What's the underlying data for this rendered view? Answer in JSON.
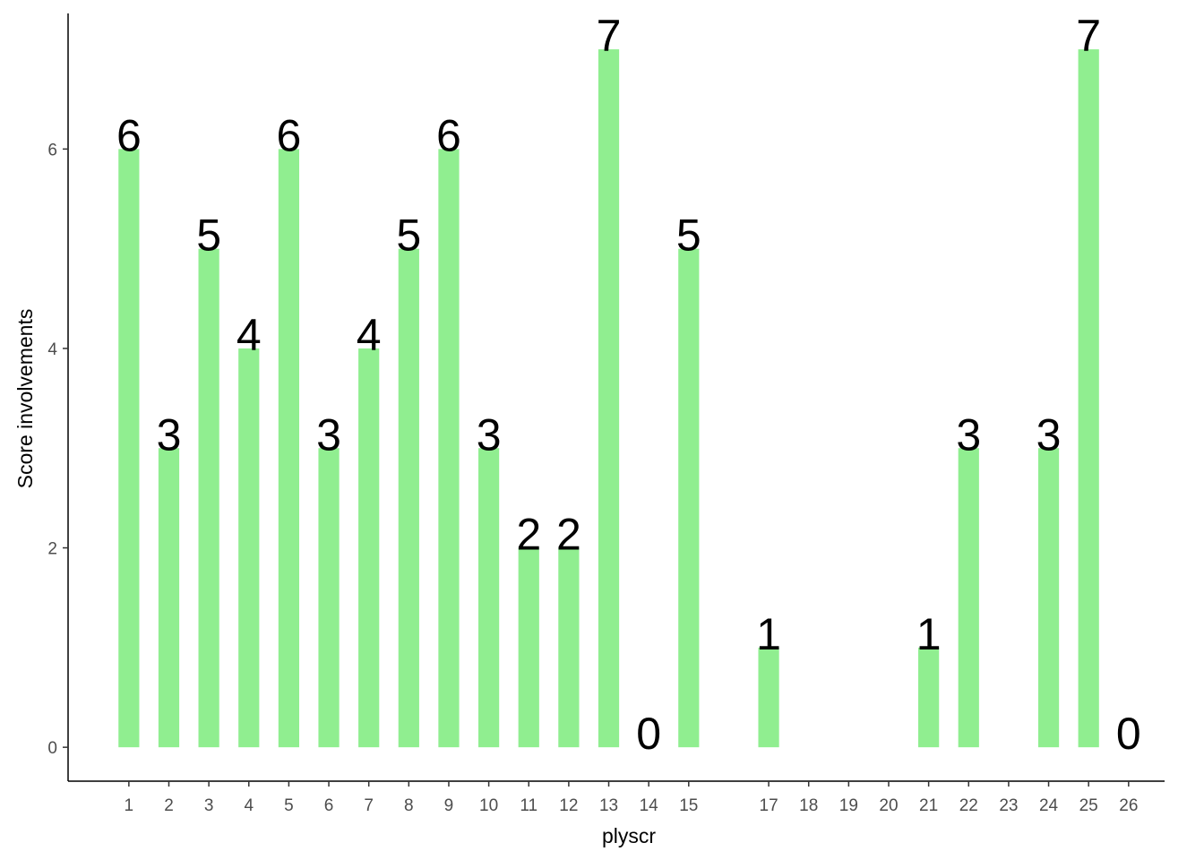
{
  "chart_data": {
    "type": "bar",
    "x_label": "plyscr",
    "y_label": "Score involvements",
    "x": [
      1,
      2,
      3,
      4,
      5,
      6,
      7,
      8,
      9,
      10,
      11,
      12,
      13,
      14,
      15,
      17,
      21,
      22,
      24,
      25,
      26
    ],
    "values": [
      6,
      3,
      5,
      4,
      6,
      3,
      4,
      5,
      6,
      3,
      2,
      2,
      7,
      0,
      5,
      1,
      1,
      3,
      3,
      7,
      0
    ],
    "color": "#90ee90",
    "xlim": [
      -0.52,
      26.9
    ],
    "xticks": [
      1,
      2,
      3,
      4,
      5,
      6,
      7,
      8,
      9,
      10,
      11,
      12,
      13,
      14,
      15,
      17,
      18,
      19,
      20,
      21,
      22,
      23,
      24,
      25,
      26
    ],
    "ylim": [
      -0.34,
      7.36
    ],
    "yticks": [
      0,
      2,
      4,
      6
    ],
    "grid": false
  }
}
